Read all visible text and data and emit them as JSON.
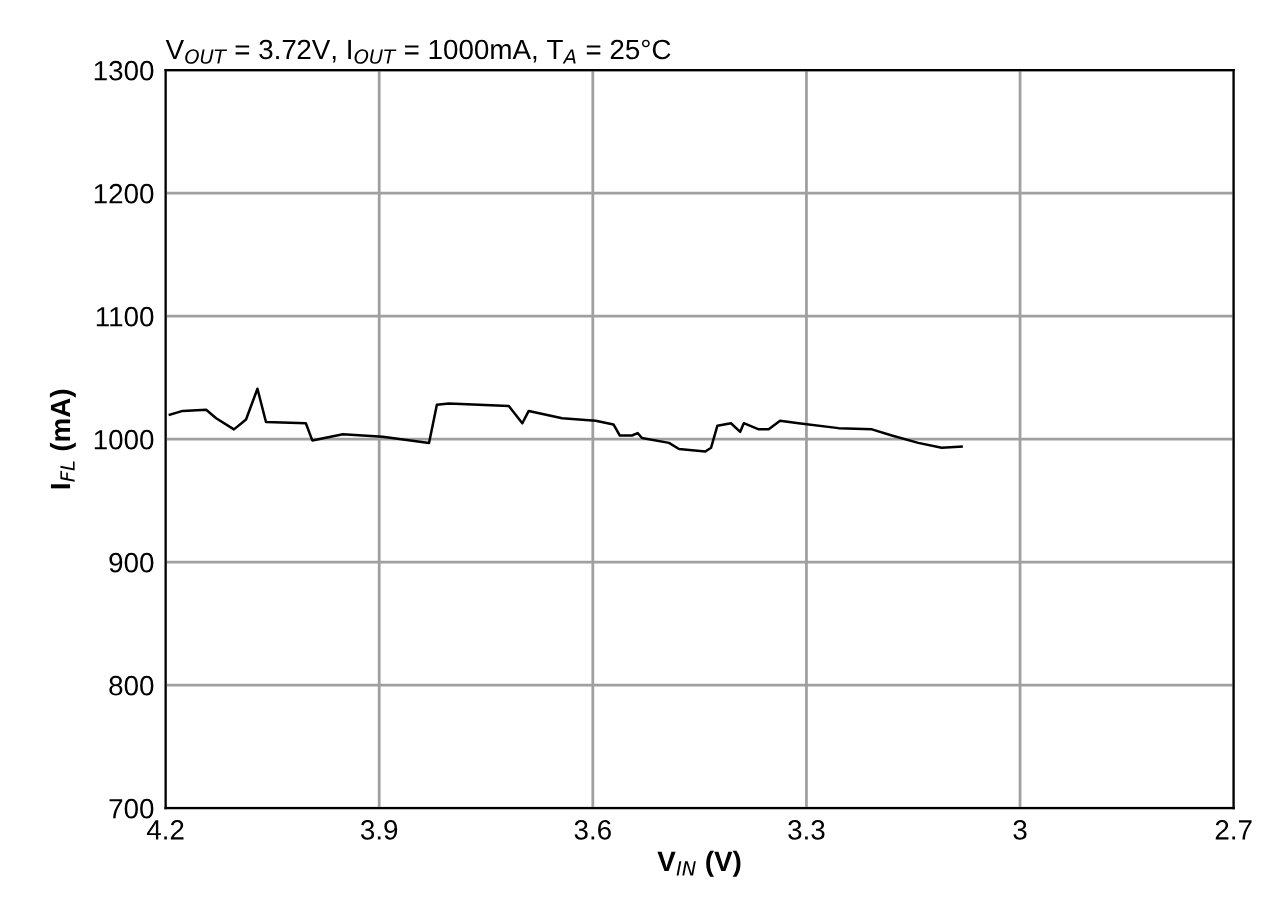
{
  "chart_data": {
    "type": "line",
    "title": "V$_{OUT}$ = 3.72V, I$_{OUT}$ = 1000mA, T$_{A}$ = 25°C",
    "xlabel": "V$_{IN}$ (V)",
    "ylabel": "I$_{FL}$ (mA)",
    "xlim": [
      4.2,
      2.7
    ],
    "xticks": [
      4.2,
      3.9,
      3.6,
      3.3,
      3,
      2.7
    ],
    "ylim": [
      700,
      1300
    ],
    "yticks": [
      700,
      800,
      900,
      1000,
      1100,
      1200,
      1300
    ],
    "grid": true,
    "series": [
      {
        "color": "#000000",
        "x": [
          4.194,
          4.176,
          4.143,
          4.129,
          4.104,
          4.087,
          4.071,
          4.059,
          4.003,
          3.994,
          3.951,
          3.895,
          3.83,
          3.819,
          3.802,
          3.718,
          3.699,
          3.69,
          3.643,
          3.596,
          3.571,
          3.562,
          3.545,
          3.537,
          3.531,
          3.493,
          3.479,
          3.442,
          3.434,
          3.425,
          3.406,
          3.393,
          3.388,
          3.367,
          3.353,
          3.337,
          3.311,
          3.255,
          3.208,
          3.18,
          3.143,
          3.11,
          3.082
        ],
        "values": [
          1020,
          1023,
          1024,
          1017,
          1008,
          1016,
          1041,
          1014,
          1013,
          999,
          1004,
          1002,
          997,
          1028,
          1029,
          1027,
          1013,
          1023,
          1017,
          1015,
          1012,
          1003,
          1003,
          1005,
          1001,
          997,
          992,
          990,
          993,
          1011,
          1013,
          1006,
          1013,
          1008,
          1008,
          1015,
          1013,
          1009,
          1008,
          1003,
          997,
          993,
          994
        ]
      }
    ]
  }
}
